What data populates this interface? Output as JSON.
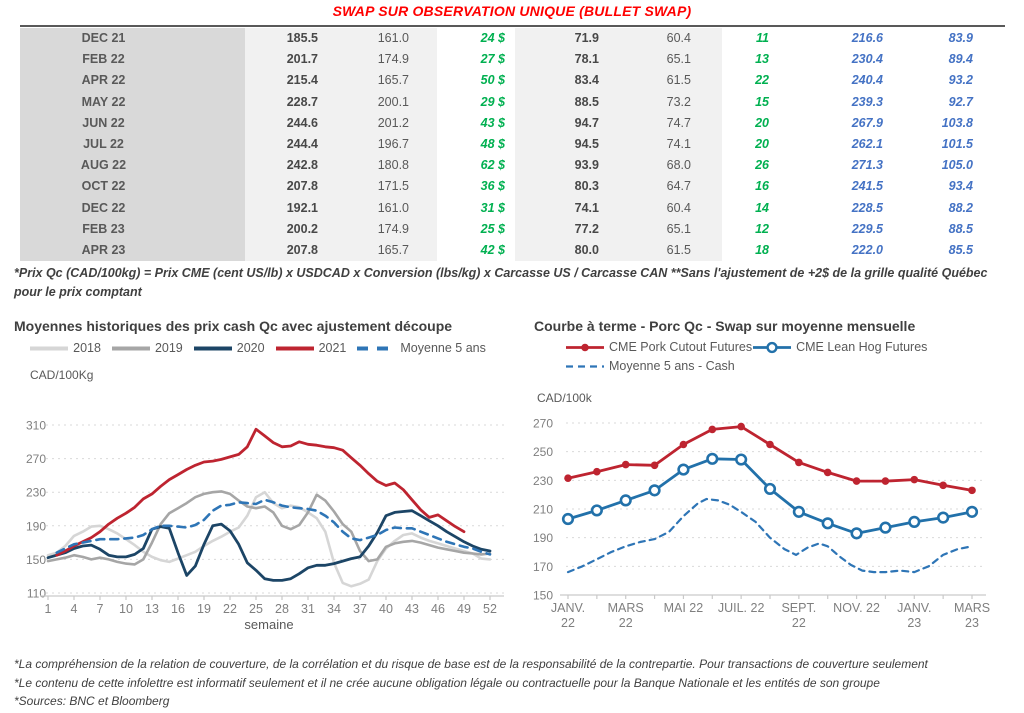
{
  "title": "SWAP SUR OBSERVATION UNIQUE (BULLET SWAP)",
  "accent_colors": {
    "green": "#00b050",
    "blue": "#4472c4",
    "title_red": "#ff0000"
  },
  "table": {
    "rows": [
      {
        "month": "DEC 21",
        "qc_swap": "185.5",
        "qc_moy": "161.0",
        "qc_diff": "24 $",
        "us_swap": "71.9",
        "us_moy": "60.4",
        "us_diff": "11",
        "cutout_cad": "216.6",
        "cutout_us": "83.9"
      },
      {
        "month": "FEB 22",
        "qc_swap": "201.7",
        "qc_moy": "174.9",
        "qc_diff": "27 $",
        "us_swap": "78.1",
        "us_moy": "65.1",
        "us_diff": "13",
        "cutout_cad": "230.4",
        "cutout_us": "89.4"
      },
      {
        "month": "APR 22",
        "qc_swap": "215.4",
        "qc_moy": "165.7",
        "qc_diff": "50 $",
        "us_swap": "83.4",
        "us_moy": "61.5",
        "us_diff": "22",
        "cutout_cad": "240.4",
        "cutout_us": "93.2"
      },
      {
        "month": "MAY 22",
        "qc_swap": "228.7",
        "qc_moy": "200.1",
        "qc_diff": "29 $",
        "us_swap": "88.5",
        "us_moy": "73.2",
        "us_diff": "15",
        "cutout_cad": "239.3",
        "cutout_us": "92.7"
      },
      {
        "month": "JUN 22",
        "qc_swap": "244.6",
        "qc_moy": "201.2",
        "qc_diff": "43 $",
        "us_swap": "94.7",
        "us_moy": "74.7",
        "us_diff": "20",
        "cutout_cad": "267.9",
        "cutout_us": "103.8"
      },
      {
        "month": "JUL 22",
        "qc_swap": "244.4",
        "qc_moy": "196.7",
        "qc_diff": "48 $",
        "us_swap": "94.5",
        "us_moy": "74.1",
        "us_diff": "20",
        "cutout_cad": "262.1",
        "cutout_us": "101.5"
      },
      {
        "month": "AUG 22",
        "qc_swap": "242.8",
        "qc_moy": "180.8",
        "qc_diff": "62 $",
        "us_swap": "93.9",
        "us_moy": "68.0",
        "us_diff": "26",
        "cutout_cad": "271.3",
        "cutout_us": "105.0"
      },
      {
        "month": "OCT 22",
        "qc_swap": "207.8",
        "qc_moy": "171.5",
        "qc_diff": "36 $",
        "us_swap": "80.3",
        "us_moy": "64.7",
        "us_diff": "16",
        "cutout_cad": "241.5",
        "cutout_us": "93.4"
      },
      {
        "month": "DEC 22",
        "qc_swap": "192.1",
        "qc_moy": "161.0",
        "qc_diff": "31 $",
        "us_swap": "74.1",
        "us_moy": "60.4",
        "us_diff": "14",
        "cutout_cad": "228.5",
        "cutout_us": "88.2"
      },
      {
        "month": "FEB 23",
        "qc_swap": "200.2",
        "qc_moy": "174.9",
        "qc_diff": "25 $",
        "us_swap": "77.2",
        "us_moy": "65.1",
        "us_diff": "12",
        "cutout_cad": "229.5",
        "cutout_us": "88.5"
      },
      {
        "month": "APR 23",
        "qc_swap": "207.8",
        "qc_moy": "165.7",
        "qc_diff": "42 $",
        "us_swap": "80.0",
        "us_moy": "61.5",
        "us_diff": "18",
        "cutout_cad": "222.0",
        "cutout_us": "85.5"
      }
    ]
  },
  "footnote": "*Prix Qc (CAD/100kg) = Prix CME (cent US/lb) x USDCAD x Conversion (lbs/kg) x Carcasse US / Carcasse CAN **Sans l'ajustement de +2$ de la grille qualité Québec pour le prix comptant",
  "chart_data": [
    {
      "type": "line",
      "title": "Moyennes historiques des prix cash Qc avec ajustement découpe",
      "y_unit": "CAD/100Kg",
      "xlabel": "semaine",
      "ylim": [
        110,
        310
      ],
      "yticks": [
        110,
        150,
        190,
        230,
        270,
        310
      ],
      "xlim": [
        1,
        52
      ],
      "xticks": [
        1,
        4,
        7,
        10,
        13,
        16,
        19,
        22,
        25,
        28,
        31,
        34,
        37,
        40,
        43,
        46,
        49,
        52
      ],
      "grid": true,
      "legend_position": "top",
      "series": [
        {
          "name": "2018",
          "color": "#d6d6d6",
          "width": 2.6,
          "values": [
            155,
            158,
            166,
            178,
            183,
            189,
            190,
            186,
            181,
            174,
            167,
            159,
            153,
            149,
            147,
            151,
            155,
            159,
            166,
            172,
            177,
            183,
            188,
            202,
            224,
            230,
            217,
            211,
            214,
            212,
            206,
            199,
            183,
            146,
            122,
            118,
            121,
            126,
            148,
            163,
            172,
            179,
            181,
            176,
            172,
            169,
            166,
            163,
            160,
            157,
            151,
            150
          ]
        },
        {
          "name": "2019",
          "color": "#a6a6a6",
          "width": 2.6,
          "values": [
            148,
            150,
            152,
            155,
            153,
            150,
            152,
            150,
            147,
            145,
            144,
            150,
            170,
            192,
            205,
            211,
            217,
            224,
            228,
            230,
            231,
            228,
            220,
            213,
            211,
            213,
            206,
            190,
            186,
            191,
            206,
            227,
            220,
            207,
            192,
            183,
            160,
            148,
            150,
            165,
            169,
            171,
            172,
            170,
            167,
            164,
            162,
            160,
            158,
            157,
            156,
            157
          ]
        },
        {
          "name": "2020",
          "color": "#1c4566",
          "width": 2.8,
          "values": [
            152,
            155,
            158,
            163,
            166,
            167,
            162,
            155,
            153,
            153,
            156,
            163,
            186,
            189,
            187,
            158,
            131,
            142,
            168,
            190,
            192,
            184,
            168,
            146,
            137,
            127,
            125,
            125,
            127,
            133,
            140,
            143,
            143,
            145,
            148,
            151,
            153,
            166,
            182,
            202,
            206,
            207,
            208,
            202,
            196,
            190,
            183,
            177,
            171,
            166,
            162,
            160
          ]
        },
        {
          "name": "2021",
          "color": "#be2430",
          "width": 2.8,
          "values": [
            null,
            155,
            160,
            166,
            171,
            176,
            183,
            192,
            199,
            205,
            212,
            222,
            228,
            237,
            245,
            251,
            257,
            262,
            266,
            267,
            269,
            272,
            275,
            284,
            305,
            297,
            289,
            284,
            285,
            290,
            287,
            286,
            284,
            283,
            280,
            271,
            262,
            252,
            243,
            238,
            241,
            233,
            221,
            209,
            200,
            203,
            196,
            189,
            183,
            null,
            null,
            null
          ]
        },
        {
          "name": "Moyenne 5 ans",
          "color": "#2e75b6",
          "width": 2.6,
          "dash": "8 6",
          "values": [
            null,
            158,
            163,
            168,
            170,
            172,
            174,
            174,
            174,
            175,
            176,
            179,
            186,
            190,
            190,
            189,
            188,
            191,
            197,
            208,
            214,
            215,
            218,
            217,
            216,
            221,
            218,
            214,
            212,
            211,
            210,
            208,
            202,
            194,
            183,
            175,
            173,
            176,
            179,
            185,
            188,
            187,
            187,
            183,
            179,
            175,
            171,
            168,
            165,
            163,
            159,
            156
          ]
        }
      ]
    },
    {
      "type": "line",
      "title": "Courbe à terme - Porc Qc - Swap sur moyenne mensuelle",
      "y_unit": "CAD/100k",
      "xlabel": "",
      "ylim": [
        150,
        270
      ],
      "yticks": [
        150,
        170,
        190,
        210,
        230,
        250,
        270
      ],
      "xlim": [
        0,
        14
      ],
      "xtick_pos": [
        0,
        2,
        4,
        6,
        8,
        10,
        12,
        14
      ],
      "xtick_labels": [
        [
          "JANV.",
          "22"
        ],
        [
          "MARS",
          "22"
        ],
        [
          "MAI 22"
        ],
        [
          "JUIL. 22"
        ],
        [
          "SEPT.",
          "22"
        ],
        [
          "NOV. 22"
        ],
        [
          "JANV.",
          "23"
        ],
        [
          "MARS",
          "23"
        ]
      ],
      "grid": true,
      "legend_position": "top",
      "series": [
        {
          "name": "CME Pork Cutout Futures",
          "color": "#be2430",
          "width": 2.8,
          "marker": "dot",
          "x": [
            0,
            1,
            2,
            3,
            4,
            5,
            6,
            7,
            8,
            9,
            10,
            11,
            12,
            13,
            14
          ],
          "values": [
            231.5,
            236,
            241,
            240.5,
            255,
            265.5,
            267.5,
            255,
            242.5,
            235.5,
            229.5,
            229.5,
            230.5,
            226.5,
            223
          ]
        },
        {
          "name": "CME Lean Hog Futures",
          "color": "#2271aa",
          "width": 2.8,
          "marker": "circle",
          "x": [
            0,
            1,
            2,
            3,
            4,
            5,
            6,
            7,
            8,
            9,
            10,
            11,
            12,
            13,
            14
          ],
          "values": [
            203,
            209,
            216,
            223,
            237.5,
            245,
            244.5,
            224,
            208,
            200,
            193,
            197,
            201,
            204,
            208
          ]
        },
        {
          "name": "Moyenne 5 ans - Cash",
          "color": "#2e75b6",
          "width": 2.2,
          "dash": "6 5",
          "x": [
            0,
            0.5,
            1,
            1.5,
            2,
            2.5,
            3,
            3.5,
            4,
            4.5,
            4.8,
            5.2,
            5.6,
            6,
            6.5,
            7,
            7.5,
            7.9,
            8.3,
            8.7,
            9,
            9.4,
            9.8,
            10.2,
            10.6,
            11,
            11.5,
            12,
            12.5,
            13,
            13.5,
            14
          ],
          "values": [
            166,
            170,
            175,
            180,
            184,
            187,
            189,
            194,
            205,
            214,
            217,
            216,
            213,
            208,
            201,
            190,
            182,
            178,
            183,
            186,
            184,
            177,
            171,
            167,
            166,
            166,
            167,
            166,
            170,
            178,
            182,
            184
          ]
        }
      ]
    }
  ],
  "footer": {
    "lines": [
      "*La compréhension de la relation de couverture, de la corrélation et du risque de base est de la responsabilité de la contrepartie. Pour transactions de couverture seulement",
      "*Le contenu de cette infolettre est informatif seulement et il ne crée aucune obligation légale ou contractuelle pour la Banque Nationale et les entités de son groupe",
      "*Sources: BNC et Bloomberg"
    ]
  }
}
